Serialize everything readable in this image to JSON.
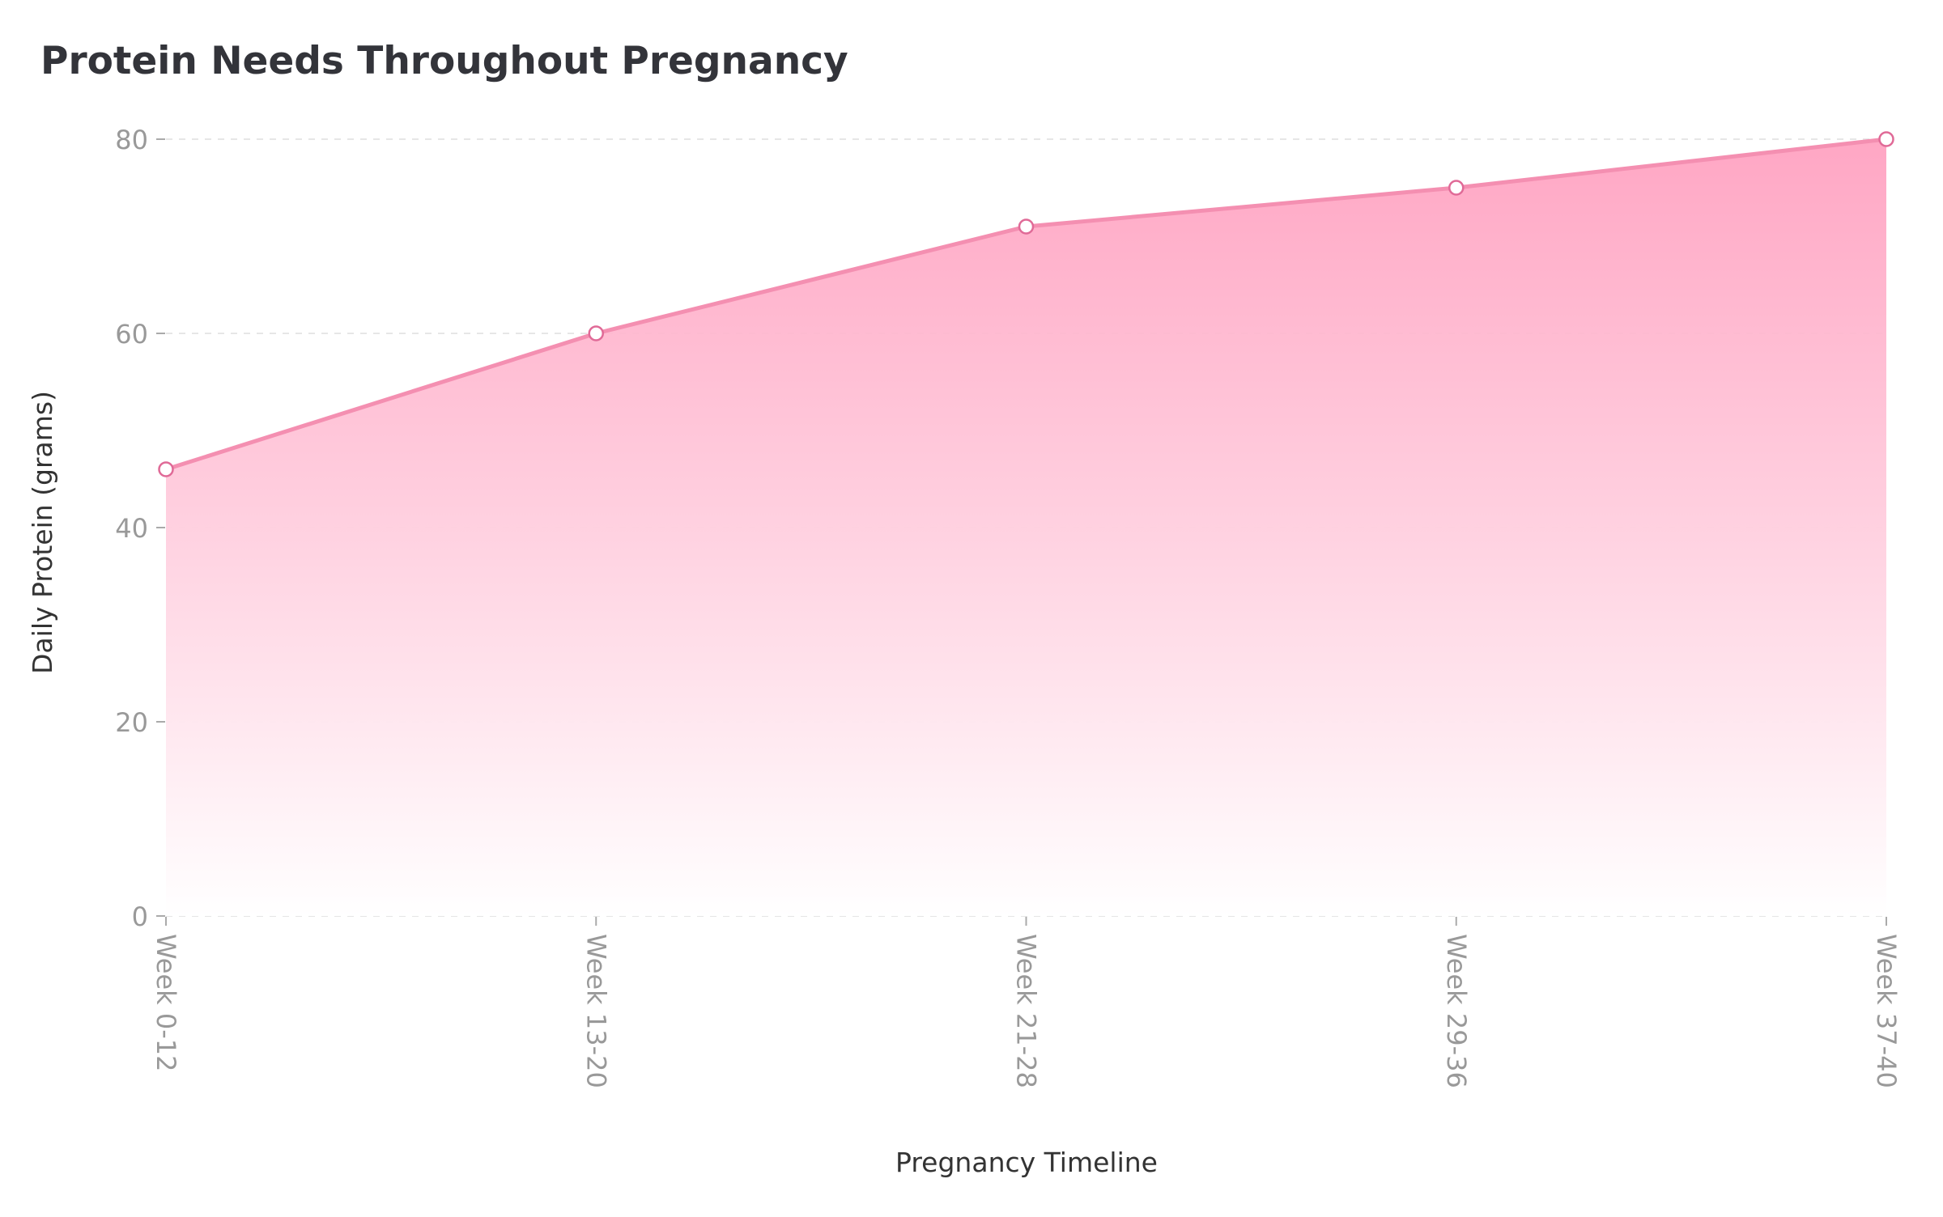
{
  "chart_data": {
    "type": "area",
    "title": "Protein Needs Throughout Pregnancy",
    "xlabel": "Pregnancy Timeline",
    "ylabel": "Daily Protein (grams)",
    "categories": [
      "Week 0-12",
      "Week 13-20",
      "Week 21-28",
      "Week 29-36",
      "Week 37-40"
    ],
    "series": [
      {
        "values": [
          46,
          60,
          71,
          75,
          80
        ]
      }
    ],
    "ylim": [
      0,
      80
    ],
    "yticks": [
      0,
      20,
      40,
      60,
      80
    ],
    "grid": "horizontal dashed",
    "legend": "none",
    "colors": {
      "line": "#f48fb1",
      "fill_top": "#ff9fbf",
      "fill_bottom": "#ffffff",
      "marker_edge": "#e06a97",
      "marker_face": "#ffffff",
      "tick_text": "#999999",
      "label_text": "#333333",
      "grid": "#e6e6e6"
    }
  }
}
